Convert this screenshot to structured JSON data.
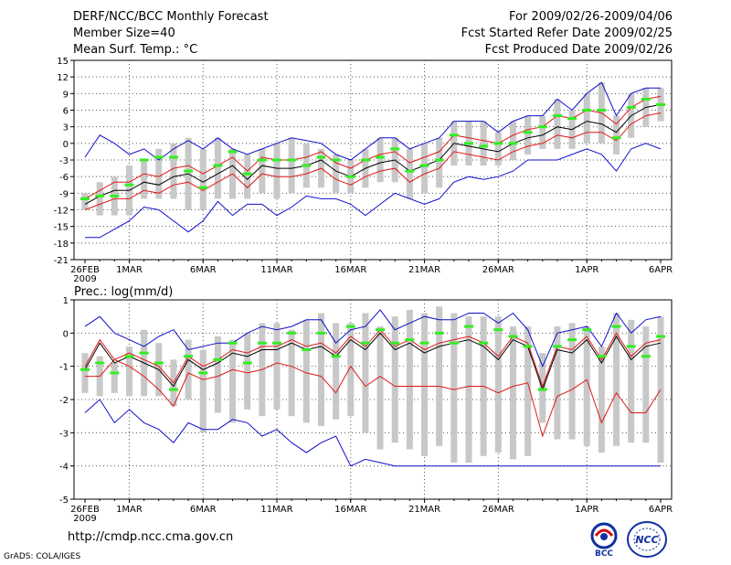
{
  "header": {
    "title": "DERF/NCC/BCC Monthly Forecast",
    "member_size": "Member Size=40",
    "variable_label": "Mean Surf. Temp.: °C",
    "forecast_period": "For 2009/02/26-2009/04/06",
    "start_date": "Fcst Started Refer Date 2009/02/25",
    "produced_date": "Fcst Produced Date 2009/02/26"
  },
  "footer": {
    "url": "http://cmdp.ncc.cma.gov.cn",
    "credit": "GrADS: COLA/IGES",
    "logo1_text": "BCC",
    "logo2_text": "NCC"
  },
  "colors": {
    "box": "#c8c8c8",
    "median": "#33ee22",
    "mean": "#000000",
    "inner": "#e01818",
    "outer": "#1010cc"
  },
  "chart_data": [
    {
      "type": "line",
      "title": "Mean Surf. Temp.: °C",
      "ylim": [
        -21,
        15
      ],
      "yticks": [
        "15",
        "12",
        "9",
        "6",
        "3",
        "0",
        "-3",
        "-6",
        "-9",
        "-12",
        "-15",
        "-18",
        "-21"
      ],
      "x_tick_labels": [
        "26FEB",
        "1MAR",
        "6MAR",
        "11MAR",
        "16MAR",
        "21MAR",
        "26MAR",
        "1APR",
        "6APR"
      ],
      "x_tick_days": [
        0,
        3,
        8,
        13,
        18,
        23,
        28,
        34,
        39
      ],
      "x_sublabel": "2009",
      "days": 40,
      "series": [
        {
          "name": "mean",
          "values": [
            -11,
            -9.5,
            -8.5,
            -8.5,
            -7,
            -7.5,
            -6,
            -5.5,
            -7,
            -5.5,
            -4,
            -6.5,
            -4,
            -4.5,
            -4.5,
            -4,
            -3,
            -5,
            -6,
            -4.5,
            -3.5,
            -3,
            -5,
            -4,
            -3,
            0,
            -0.5,
            -1,
            -1.5,
            0,
            1,
            1.5,
            3,
            2.5,
            4,
            3.5,
            2,
            5,
            6.5,
            7
          ]
        },
        {
          "name": "inner_upper",
          "values": [
            -10,
            -8.5,
            -7,
            -7,
            -5.5,
            -6,
            -4.5,
            -4,
            -5.5,
            -4,
            -2.5,
            -5,
            -2.5,
            -3,
            -3,
            -2.5,
            -1.5,
            -3.5,
            -4.5,
            -3,
            -2,
            -1.5,
            -3.5,
            -2.5,
            -1.5,
            1.5,
            1,
            0.5,
            0,
            1.5,
            2.5,
            3,
            5,
            4.5,
            6,
            5.5,
            3.5,
            6.5,
            8,
            8.5
          ]
        },
        {
          "name": "inner_lower",
          "values": [
            -12,
            -11,
            -10,
            -10,
            -8.5,
            -9,
            -7.5,
            -7,
            -8.5,
            -7,
            -5.5,
            -8,
            -5.5,
            -6,
            -6,
            -5.5,
            -4.5,
            -6.5,
            -7.5,
            -6,
            -5,
            -4.5,
            -7,
            -5.5,
            -4.5,
            -1.5,
            -2,
            -2.5,
            -3,
            -1.5,
            -0.5,
            0,
            1.5,
            1,
            2,
            2,
            0.5,
            3.5,
            5,
            5.5
          ]
        },
        {
          "name": "outer_upper",
          "values": [
            -2.5,
            1.5,
            0,
            -2,
            -1,
            -3,
            -1,
            0.5,
            -1,
            1,
            -1,
            -2,
            -1,
            0,
            1,
            0.5,
            0,
            -2,
            -3,
            -1,
            1,
            1,
            -1,
            0,
            1,
            4,
            4,
            4,
            2,
            4,
            5,
            5,
            8,
            6,
            9,
            11,
            5,
            9,
            10,
            10
          ]
        },
        {
          "name": "outer_lower",
          "values": [
            -17,
            -17,
            -15.5,
            -14,
            -11.5,
            -12,
            -14,
            -16,
            -14,
            -10.5,
            -13,
            -11,
            -11,
            -13,
            -11.5,
            -9.5,
            -10,
            -10,
            -11,
            -13,
            -11,
            -9,
            -10,
            -11,
            -10,
            -7,
            -6,
            -6.5,
            -6,
            -5,
            -3,
            -3,
            -3,
            -2,
            -1,
            -2,
            -5,
            -1,
            0,
            -1
          ]
        },
        {
          "name": "median",
          "values": [
            -10,
            -9.5,
            -9.5,
            -7.5,
            -3,
            -2.5,
            -2.5,
            -5,
            -8,
            -4,
            -1.5,
            -5.5,
            -3,
            -3,
            -3,
            -4,
            -2.5,
            -3,
            -6,
            -3,
            -2.5,
            -1,
            -5,
            -4,
            -3,
            1.5,
            0,
            -0.5,
            0,
            0,
            2,
            3,
            5,
            4.5,
            6,
            6,
            1,
            6.5,
            8,
            7
          ]
        },
        {
          "name": "box_high",
          "values": [
            -9,
            -7,
            -6,
            -4,
            -3,
            -1,
            0,
            1,
            -1,
            1,
            -1,
            -2,
            -1,
            0,
            1,
            0,
            -1,
            -2,
            -3,
            -1,
            1,
            1,
            -1,
            0,
            1,
            4,
            4,
            4,
            2,
            4,
            5,
            5,
            8,
            6,
            9,
            11,
            5,
            9,
            10,
            10
          ]
        },
        {
          "name": "box_low",
          "values": [
            -12,
            -13,
            -13,
            -13,
            -10,
            -10,
            -10,
            -12,
            -12,
            -10,
            -10,
            -10,
            -9,
            -10,
            -9,
            -8,
            -8,
            -9,
            -9,
            -8,
            -7,
            -7,
            -10,
            -9,
            -8,
            -4,
            -4,
            -4,
            -4,
            -3,
            -2,
            -1,
            -1,
            -1,
            0,
            0,
            -2,
            1,
            3,
            4
          ]
        }
      ]
    },
    {
      "type": "line",
      "title": "Prec.: log(mm/d)",
      "ylim": [
        -5,
        1
      ],
      "yticks": [
        "1",
        "0",
        "-1",
        "-2",
        "-3",
        "-4",
        "-5"
      ],
      "x_tick_labels": [
        "26FEB",
        "1MAR",
        "6MAR",
        "11MAR",
        "16MAR",
        "21MAR",
        "26MAR",
        "1APR",
        "6APR"
      ],
      "x_tick_days": [
        0,
        3,
        8,
        13,
        18,
        23,
        28,
        34,
        39
      ],
      "x_sublabel": "2009",
      "days": 40,
      "series": [
        {
          "name": "mean",
          "values": [
            -1.1,
            -0.3,
            -0.9,
            -0.7,
            -0.9,
            -1.1,
            -1.6,
            -0.8,
            -1.1,
            -0.9,
            -0.6,
            -0.7,
            -0.5,
            -0.5,
            -0.3,
            -0.5,
            -0.4,
            -0.7,
            -0.2,
            -0.5,
            0,
            -0.5,
            -0.3,
            -0.6,
            -0.4,
            -0.3,
            -0.2,
            -0.4,
            -0.8,
            -0.2,
            -0.4,
            -1.7,
            -0.5,
            -0.6,
            -0.2,
            -0.9,
            -0.1,
            -0.8,
            -0.4,
            -0.3
          ]
        },
        {
          "name": "inner_upper",
          "values": [
            -1,
            -0.2,
            -0.8,
            -0.6,
            -0.8,
            -1,
            -1.5,
            -0.7,
            -1,
            -0.8,
            -0.5,
            -0.6,
            -0.4,
            -0.4,
            -0.2,
            -0.4,
            -0.3,
            -0.6,
            -0.1,
            -0.4,
            0.1,
            -0.4,
            -0.2,
            -0.5,
            -0.3,
            -0.2,
            -0.1,
            -0.3,
            -0.7,
            -0.1,
            -0.3,
            -1.6,
            -0.4,
            -0.5,
            -0.1,
            -0.8,
            0,
            -0.7,
            -0.3,
            -0.2
          ]
        },
        {
          "name": "inner_lower",
          "values": [
            -1.3,
            -1.3,
            -0.8,
            -1,
            -1.3,
            -1.7,
            -2.2,
            -1.2,
            -1.4,
            -1.3,
            -1.1,
            -1.2,
            -1.1,
            -0.9,
            -1,
            -1.2,
            -1.3,
            -1.8,
            -1,
            -1.6,
            -1.3,
            -1.6,
            -1.6,
            -1.6,
            -1.6,
            -1.7,
            -1.6,
            -1.6,
            -1.8,
            -1.6,
            -1.5,
            -3.1,
            -1.9,
            -1.7,
            -1.4,
            -2.7,
            -1.8,
            -2.4,
            -2.4,
            -1.7
          ]
        },
        {
          "name": "outer_upper",
          "values": [
            0.2,
            0.5,
            0,
            -0.2,
            -0.4,
            -0.1,
            0.1,
            -0.5,
            -0.4,
            -0.3,
            -0.3,
            0,
            0.2,
            0.1,
            0.2,
            0.4,
            0.4,
            -0.3,
            0.1,
            0.2,
            0.7,
            0.1,
            0.3,
            0.5,
            0.4,
            0.4,
            0.6,
            0.6,
            0.3,
            0.6,
            0.1,
            -1,
            0,
            0.1,
            0.2,
            -0.4,
            0.6,
            0,
            0.4,
            0.5
          ]
        },
        {
          "name": "outer_lower",
          "values": [
            -2.4,
            -2,
            -2.7,
            -2.3,
            -2.7,
            -2.9,
            -3.3,
            -2.7,
            -2.9,
            -2.9,
            -2.6,
            -2.7,
            -3.1,
            -2.9,
            -3.3,
            -3.6,
            -3.3,
            -3.1,
            -4,
            -3.8,
            -3.9,
            -4,
            -4,
            -4,
            -4,
            -4,
            -4,
            -4,
            -4,
            -4,
            -4,
            -4,
            -4,
            -4,
            -4,
            -4,
            -4,
            -4,
            -4,
            -4
          ]
        },
        {
          "name": "median",
          "values": [
            -1.1,
            -0.9,
            -1.2,
            -0.7,
            -0.6,
            -0.9,
            -1.7,
            -0.7,
            -1.2,
            -0.8,
            -0.3,
            -0.9,
            -0.3,
            -0.3,
            0,
            -0.5,
            0,
            -0.7,
            0.2,
            -0.3,
            0.1,
            -0.3,
            -0.2,
            -0.3,
            0,
            -0.3,
            0.2,
            -0.3,
            0.1,
            -0.1,
            -0.4,
            -1.7,
            -0.4,
            -0.2,
            0.1,
            -0.7,
            0.2,
            -0.4,
            -0.7,
            -0.1
          ]
        },
        {
          "name": "box_high",
          "values": [
            -0.6,
            -0.7,
            -0.9,
            -0.4,
            0.1,
            -0.3,
            -0.8,
            -0.2,
            -0.5,
            -0.1,
            -0.2,
            0,
            0.3,
            0.3,
            0.1,
            0.4,
            0.6,
            0.3,
            0.3,
            0.6,
            0.2,
            0.5,
            0.7,
            0.6,
            0.8,
            0.6,
            0.5,
            0.5,
            0.5,
            0.2,
            0.2,
            -0.6,
            0.2,
            0.3,
            0.2,
            -0.4,
            0.6,
            0.4,
            0.2,
            0.5
          ]
        },
        {
          "name": "box_low",
          "values": [
            -1.8,
            -1.9,
            -1.8,
            -1.9,
            -1.9,
            -1.9,
            -2.2,
            -2,
            -3,
            -2.4,
            -2.7,
            -2.3,
            -2.5,
            -2.3,
            -2.5,
            -2.7,
            -2.8,
            -2.6,
            -2.5,
            -3,
            -3.5,
            -3.3,
            -3.5,
            -3.7,
            -3.4,
            -3.9,
            -3.9,
            -3.7,
            -3.6,
            -3.8,
            -3.7,
            -2.7,
            -3.2,
            -3.2,
            -3.4,
            -3.6,
            -3.4,
            -3.3,
            -3.3,
            -3.9
          ]
        }
      ]
    }
  ]
}
